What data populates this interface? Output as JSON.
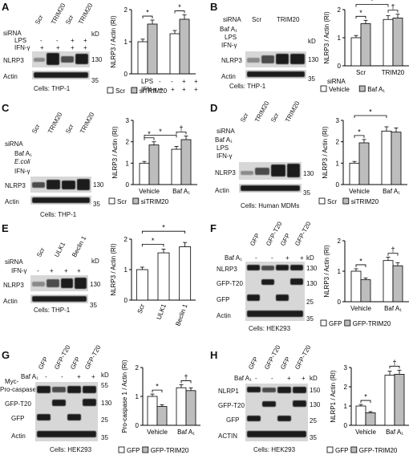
{
  "panels": {
    "A": {
      "label": "A",
      "siRNA": "siRNA",
      "lps": "LPS",
      "ifn": "IFN-γ",
      "scr1": "Scr",
      "trim1": "TRIM20",
      "scr2": "Scr",
      "trim2": "TRIM20",
      "nlrp3": "NLRP3",
      "actin": "Actin",
      "kd": "kD",
      "kd1": "130",
      "kd2": "35",
      "cells": "Cells: THP-1",
      "ylabel": "NLRP3 / Actin (RI)",
      "legend": [
        "Scr",
        "siTRIM20"
      ],
      "sig": "*",
      "x_lps": "LPS",
      "x_ifn": "IFN-γ"
    },
    "B": {
      "label": "B",
      "siRNA": "siRNA",
      "baf": "Baf A₁",
      "lps": "LPS",
      "ifn": "IFN-γ",
      "scr": "Scr",
      "trim": "TRIM20",
      "nlrp3": "NLRP3",
      "actin": "Actin",
      "kd": "kD",
      "kd1": "130",
      "kd2": "35",
      "cells": "Cells: THP-1",
      "ylabel": "NLRP3 / Actin (RI)",
      "xcat": [
        "Scr",
        "TRIM20"
      ],
      "xlabel": "siRNA",
      "legend": [
        "Vehicle",
        "Baf A₁"
      ],
      "sig": "*",
      "dag": "†"
    },
    "C": {
      "label": "C",
      "siRNA": "siRNA",
      "baf": "Baf A₁",
      "ecoli": "E.coli",
      "ifn": "IFN-γ",
      "scr1": "Scr",
      "trim1": "TRIM20",
      "scr2": "Scr",
      "trim2": "TRIM20",
      "nlrp3": "NLRP3",
      "actin": "Actin",
      "kd": "kD",
      "kd1": "130",
      "kd2": "35",
      "cells": "Cells: THP-1",
      "ylabel": "NLRP3 / Actin (RI)",
      "xcat": [
        "Vehicle",
        "Baf A₁"
      ],
      "legend": [
        "Scr",
        "siTRIM20"
      ],
      "sig": "*",
      "dag": "†"
    },
    "D": {
      "label": "D",
      "siRNA": "siRNA",
      "baf": "Baf A₁",
      "lps": "LPS",
      "ifn": "IFN-γ",
      "scr1": "Scr",
      "trim1": "TRIM20",
      "scr2": "Scr",
      "trim2": "TRIM20",
      "nlrp3": "NLRP3",
      "actin": "Actin",
      "kd": "kD",
      "kd1": "130",
      "kd2": "35",
      "cells": "Cells: Human MDMs",
      "ylabel": "NLRP3 / Actin (RI)",
      "xcat": [
        "Vehicle",
        "Baf A₁"
      ],
      "legend": [
        "Scr",
        "siTRIM20"
      ],
      "sig": "*"
    },
    "E": {
      "label": "E",
      "siRNA": "siRNA",
      "ifn": "IFN-γ",
      "scr": "Scr",
      "ulk": "ULK1",
      "beclin": "Beclin 1",
      "nlrp3": "NLRP3",
      "actin": "Actin",
      "kd": "kD",
      "kd1": "130",
      "kd2": "35",
      "cells": "Cells: THP-1",
      "ylabel": "NLRP3 / Actin (RI)",
      "xcat": [
        "Scr",
        "ULK1",
        "Beclin 1"
      ],
      "xlabel": "siRNA",
      "sig": "*"
    },
    "F": {
      "label": "F",
      "baf": "Baf A₁",
      "gfp1": "GFP",
      "t201": "GFP-T20",
      "gfp2": "GFP",
      "t202": "GFP-T20",
      "nlrp3": "NLRP3",
      "gfpt20": "GFP-T20",
      "gfp": "GFP",
      "actin": "Actin",
      "kd": "kD",
      "kd1": "130",
      "kd2": "130",
      "kd3": "25",
      "kd4": "35",
      "cells": "Cells: HEK293",
      "ylabel": "NLRP3 / Actin (RI)",
      "xcat": [
        "Vehicle",
        "Baf A₁"
      ],
      "legend": [
        "GFP",
        "GFP-TRIM20"
      ],
      "sig": "*",
      "dag": "†"
    },
    "G": {
      "label": "G",
      "baf": "Baf A₁",
      "gfp1": "GFP",
      "t201": "GFP-T20",
      "gfp2": "GFP",
      "t202": "GFP-T20",
      "myc": "Myc-",
      "procasp": "Pro-caspase 1",
      "gfpt20": "GFP-T20",
      "gfp": "GFP",
      "actin": "Actin",
      "kd": "kD",
      "kd1": "55",
      "kd2": "130",
      "kd3": "25",
      "kd4": "35",
      "cells": "Cells: HEK293",
      "ylabel": "Pro-caspase 1 / Actin (RI)",
      "xcat": [
        "Vehicle",
        "Baf A₁"
      ],
      "legend": [
        "GFP",
        "GFP-TRIM20"
      ],
      "sig": "*",
      "dag": "†"
    },
    "H": {
      "label": "H",
      "baf": "Baf A₁",
      "gfp1": "GFP",
      "t201": "GFP-T20",
      "gfp2": "GFP",
      "t202": "GFP-T20",
      "nlrp1": "NLRP1",
      "gfpt20": "GFP-T20",
      "gfp": "GFP",
      "actin": "ACTIN",
      "kd": "kD",
      "kd1": "150",
      "kd2": "130",
      "kd3": "25",
      "kd4": "35",
      "cells": "Cells: HEK293",
      "ylabel": "NLRP1 / Actin (RI)",
      "xcat": [
        "Vehicle",
        "Baf A₁"
      ],
      "legend": [
        "GFP",
        "GFP-TRIM20"
      ],
      "sig": "*",
      "dag": "†"
    },
    "signs": {
      "plus": "+",
      "minus": "-"
    }
  },
  "chart_data": [
    {
      "panel": "A",
      "type": "bar",
      "series": [
        {
          "name": "Scr",
          "values": [
            1.0,
            1.25
          ]
        },
        {
          "name": "siTRIM20",
          "values": [
            1.55,
            1.7
          ]
        }
      ],
      "ylim": [
        0,
        2
      ],
      "yticks": [
        0,
        1,
        2
      ]
    },
    {
      "panel": "B",
      "type": "bar",
      "categories": [
        "Scr",
        "TRIM20"
      ],
      "series": [
        {
          "name": "Vehicle",
          "values": [
            1.0,
            1.65
          ]
        },
        {
          "name": "Baf A₁",
          "values": [
            1.5,
            1.7
          ]
        }
      ],
      "ylim": [
        0,
        2
      ],
      "yticks": [
        0,
        1,
        2
      ]
    },
    {
      "panel": "C",
      "type": "bar",
      "categories": [
        "Vehicle",
        "Baf A₁"
      ],
      "series": [
        {
          "name": "Scr",
          "values": [
            1.0,
            1.65
          ]
        },
        {
          "name": "siTRIM20",
          "values": [
            1.85,
            2.1
          ]
        }
      ],
      "ylim": [
        0,
        3
      ],
      "yticks": [
        0,
        1,
        2,
        3
      ]
    },
    {
      "panel": "D",
      "type": "bar",
      "categories": [
        "Vehicle",
        "Baf A₁"
      ],
      "series": [
        {
          "name": "Scr",
          "values": [
            1.0,
            2.5
          ]
        },
        {
          "name": "siTRIM20",
          "values": [
            1.95,
            2.45
          ]
        }
      ],
      "ylim": [
        0,
        3
      ],
      "yticks": [
        0,
        1,
        2,
        3
      ]
    },
    {
      "panel": "E",
      "type": "bar",
      "categories": [
        "Scr",
        "ULK1",
        "Beclin 1"
      ],
      "series": [
        {
          "name": "",
          "values": [
            1.0,
            1.55,
            1.75
          ]
        }
      ],
      "ylim": [
        0,
        2
      ],
      "yticks": [
        0,
        1,
        2
      ]
    },
    {
      "panel": "F",
      "type": "bar",
      "categories": [
        "Vehicle",
        "Baf A₁"
      ],
      "series": [
        {
          "name": "GFP",
          "values": [
            1.0,
            1.35
          ]
        },
        {
          "name": "GFP-TRIM20",
          "values": [
            0.72,
            1.18
          ]
        }
      ],
      "ylim": [
        0,
        2
      ],
      "yticks": [
        0,
        1,
        2
      ]
    },
    {
      "panel": "G",
      "type": "bar",
      "categories": [
        "Vehicle",
        "Baf A₁"
      ],
      "series": [
        {
          "name": "GFP",
          "values": [
            1.0,
            1.3
          ]
        },
        {
          "name": "GFP-TRIM20",
          "values": [
            0.65,
            1.2
          ]
        }
      ],
      "ylim": [
        0,
        2
      ],
      "yticks": [
        0,
        1,
        2
      ]
    },
    {
      "panel": "H",
      "type": "bar",
      "categories": [
        "Vehicle",
        "Baf A₁"
      ],
      "series": [
        {
          "name": "GFP",
          "values": [
            1.0,
            2.6
          ]
        },
        {
          "name": "GFP-TRIM20",
          "values": [
            0.65,
            2.65
          ]
        }
      ],
      "ylim": [
        0,
        3
      ],
      "yticks": [
        0,
        1,
        2,
        3
      ]
    }
  ]
}
